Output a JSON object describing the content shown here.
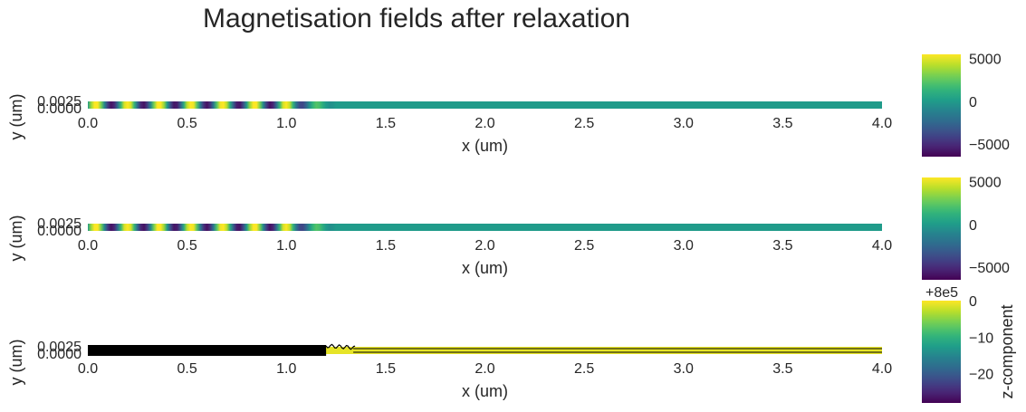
{
  "title": "Magnetisation fields after relaxation",
  "chart_data": [
    {
      "type": "heatmap",
      "xlabel": "x (um)",
      "ylabel": "y (um)",
      "xlim": [
        0.0,
        4.0
      ],
      "ylim": [
        0.0,
        0.0025
      ],
      "xticks": [
        "0.0",
        "0.5",
        "1.0",
        "1.5",
        "2.0",
        "2.5",
        "3.0",
        "3.5",
        "4.0"
      ],
      "yticks": [
        "0.0000",
        "0.0025"
      ],
      "colorbar": {
        "min": -6500,
        "max": 5500,
        "ticks": [
          "5000",
          "0",
          "−5000"
        ],
        "tick_values": [
          5000,
          0,
          -5000
        ],
        "offset": "",
        "label": ""
      },
      "wave_extent_um": [
        0.0,
        1.25
      ],
      "wave_wavelength_um": 0.16,
      "wave_amplitude": 6000,
      "colormap": "viridis",
      "contours": false
    },
    {
      "type": "heatmap",
      "xlabel": "x (um)",
      "ylabel": "y (um)",
      "xlim": [
        0.0,
        4.0
      ],
      "ylim": [
        0.0,
        0.0025
      ],
      "xticks": [
        "0.0",
        "0.5",
        "1.0",
        "1.5",
        "2.0",
        "2.5",
        "3.0",
        "3.5",
        "4.0"
      ],
      "yticks": [
        "0.0000",
        "0.0025"
      ],
      "colorbar": {
        "min": -6500,
        "max": 5500,
        "ticks": [
          "5000",
          "0",
          "−5000"
        ],
        "tick_values": [
          5000,
          0,
          -5000
        ],
        "offset": "",
        "label": ""
      },
      "wave_extent_um": [
        0.0,
        1.25
      ],
      "wave_wavelength_um": 0.16,
      "wave_amplitude": 6000,
      "colormap": "viridis",
      "contours": false
    },
    {
      "type": "heatmap",
      "xlabel": "x (um)",
      "ylabel": "y (um)",
      "xlim": [
        0.0,
        4.0
      ],
      "ylim": [
        0.0,
        0.0025
      ],
      "xticks": [
        "0.0",
        "0.5",
        "1.0",
        "1.5",
        "2.0",
        "2.5",
        "3.0",
        "3.5",
        "4.0"
      ],
      "yticks": [
        "0.0000",
        "0.0025"
      ],
      "colorbar": {
        "min": -28,
        "max": 0,
        "ticks": [
          "0",
          "−10",
          "−20"
        ],
        "tick_values": [
          0,
          -10,
          -20
        ],
        "offset": "+8e5",
        "label": "z-component"
      },
      "wave_extent_um": [
        0.0,
        1.2
      ],
      "colormap": "viridis",
      "contours": true
    }
  ]
}
